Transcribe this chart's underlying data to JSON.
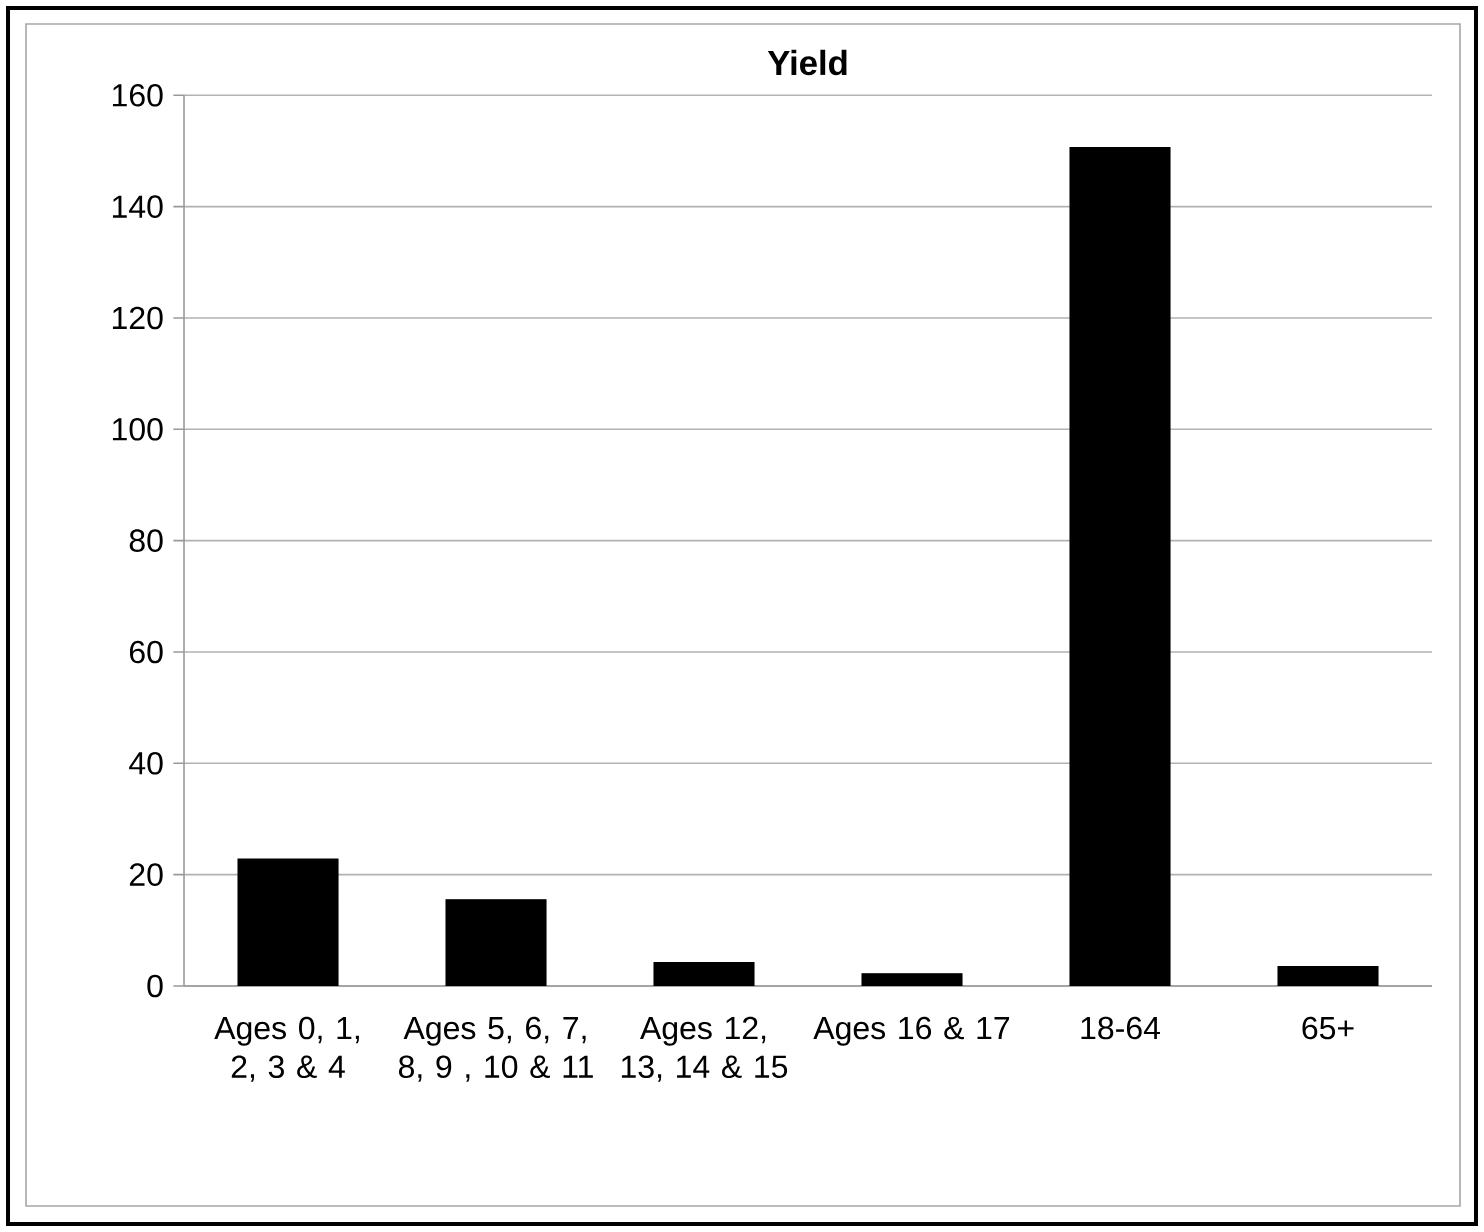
{
  "chart_data": {
    "type": "bar",
    "title": "Yield",
    "categories": [
      "Ages 0, 1, 2, 3 & 4",
      "Ages 5, 6, 7, 8, 9 , 10 & 11",
      "Ages 12, 13, 14 & 15",
      "Ages 16 & 17",
      "18-64",
      "65+"
    ],
    "values": [
      22.8,
      15.5,
      4.2,
      2.2,
      150.6,
      3.5
    ],
    "color": "#000000",
    "ylim": [
      0,
      160
    ],
    "yticks": [
      0,
      20,
      40,
      60,
      80,
      100,
      120,
      140,
      160
    ],
    "grid": "y"
  }
}
